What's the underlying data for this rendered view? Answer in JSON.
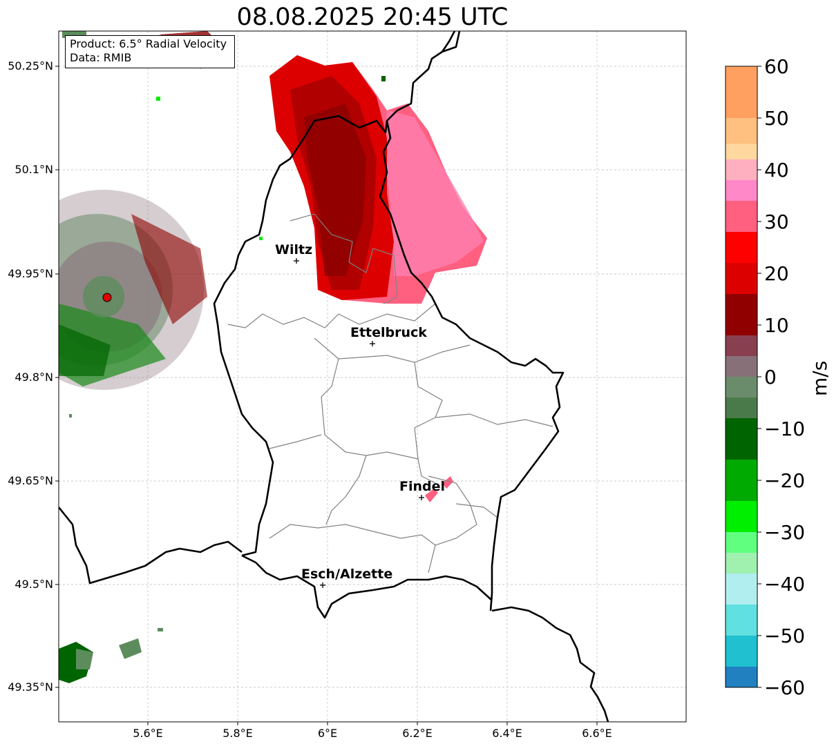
{
  "title": "08.08.2025 20:45 UTC",
  "info_box": {
    "product": "Product: 6.5° Radial Velocity",
    "data": "Data: RMIB"
  },
  "map": {
    "x_ticks": [
      "5.6°E",
      "5.8°E",
      "6°E",
      "6.2°E",
      "6.4°E",
      "6.6°E"
    ],
    "y_ticks": [
      "50.25°N",
      "50.1°N",
      "49.95°N",
      "49.8°N",
      "49.65°N",
      "49.5°N",
      "49.35°N"
    ],
    "cities": [
      {
        "name": "Wiltz",
        "lon": 5.93,
        "lat": 49.97
      },
      {
        "name": "Ettelbruck",
        "lon": 6.1,
        "lat": 49.85
      },
      {
        "name": "Findel",
        "lon": 6.21,
        "lat": 49.63
      },
      {
        "name": "Esch/Alzette",
        "lon": 5.99,
        "lat": 49.5
      }
    ],
    "radar_site": {
      "lon": 5.5,
      "lat": 49.92,
      "color": "#e00000"
    },
    "colors": {
      "border": "#000000",
      "canton": "#808080",
      "grid": "#b0b0b0"
    }
  },
  "colorbar": {
    "unit": "m/s",
    "min": -60,
    "max": 60,
    "tick_labels": [
      "60",
      "50",
      "40",
      "30",
      "20",
      "10",
      "0",
      "−10",
      "−20",
      "−30",
      "−40",
      "−50",
      "−60"
    ],
    "bands": [
      {
        "from": 50,
        "to": 60,
        "color": "#ffa060"
      },
      {
        "from": 45,
        "to": 50,
        "color": "#ffc080"
      },
      {
        "from": 42,
        "to": 45,
        "color": "#ffd8a0"
      },
      {
        "from": 38,
        "to": 42,
        "color": "#ffb0c0"
      },
      {
        "from": 34,
        "to": 38,
        "color": "#ff88c8"
      },
      {
        "from": 28,
        "to": 34,
        "color": "#ff6080"
      },
      {
        "from": 22,
        "to": 28,
        "color": "#ff0000"
      },
      {
        "from": 16,
        "to": 22,
        "color": "#dd0000"
      },
      {
        "from": 8,
        "to": 16,
        "color": "#900000"
      },
      {
        "from": 4,
        "to": 8,
        "color": "#884050"
      },
      {
        "from": 0,
        "to": 4,
        "color": "#887078"
      },
      {
        "from": -4,
        "to": 0,
        "color": "#6a8c6a"
      },
      {
        "from": -8,
        "to": -4,
        "color": "#4a7a4a"
      },
      {
        "from": -16,
        "to": -8,
        "color": "#006400"
      },
      {
        "from": -24,
        "to": -16,
        "color": "#00aa00"
      },
      {
        "from": -30,
        "to": -24,
        "color": "#00ee00"
      },
      {
        "from": -34,
        "to": -30,
        "color": "#60ff80"
      },
      {
        "from": -38,
        "to": -34,
        "color": "#a0f0b0"
      },
      {
        "from": -44,
        "to": -38,
        "color": "#b0eef0"
      },
      {
        "from": -50,
        "to": -44,
        "color": "#60e0e0"
      },
      {
        "from": -56,
        "to": -50,
        "color": "#20c0d0"
      },
      {
        "from": -60,
        "to": -56,
        "color": "#2080c0"
      }
    ]
  }
}
